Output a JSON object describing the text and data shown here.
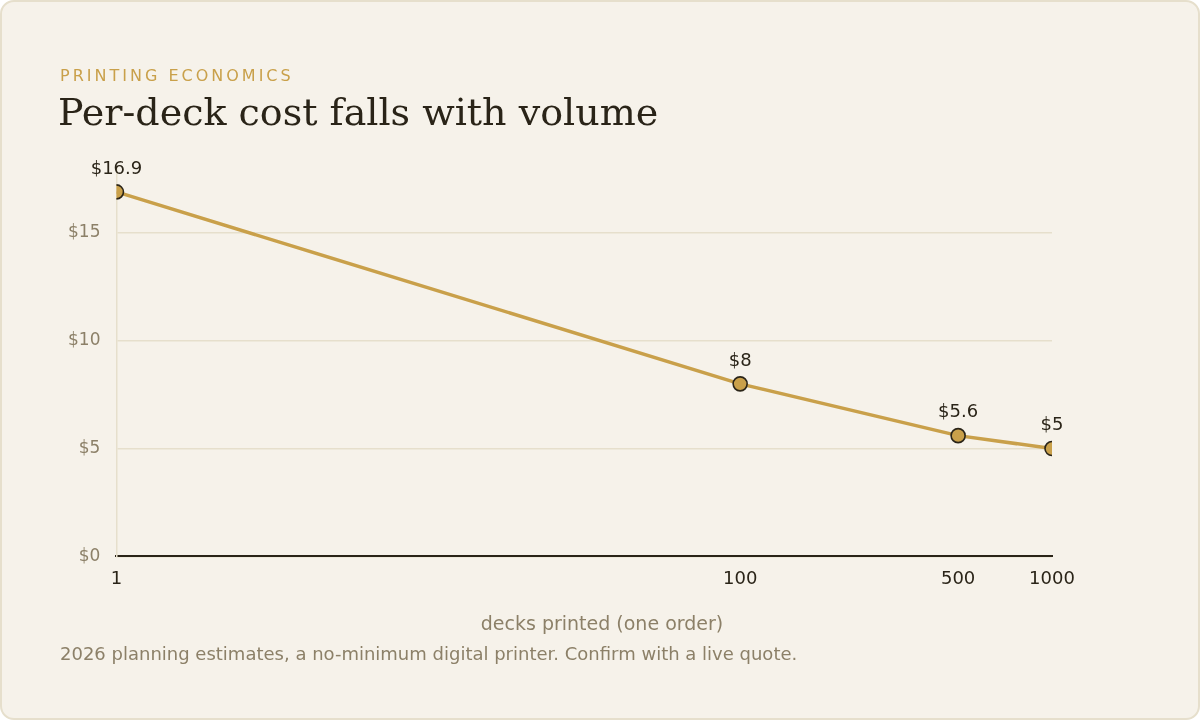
{
  "chart_data": {
    "type": "line",
    "subtitle": "PRINTING ECONOMICS",
    "title": "Per-deck cost falls with volume",
    "xlabel": "decks printed (one order)",
    "annotations": [
      "2026 planning estimates, a no-minimum digital printer. Confirm with a live quote."
    ],
    "x": [
      1,
      100,
      500,
      1000
    ],
    "series": [
      {
        "color": "#c9a04a",
        "values": [
          16.9,
          8,
          5.6,
          5
        ],
        "value_labels": [
          "$16.9",
          "$8",
          "$5.6",
          "$5"
        ]
      }
    ],
    "log": "x",
    "xlim": [
      1,
      1000
    ],
    "xticks": [
      1,
      100,
      500,
      1000
    ],
    "ylim": [
      0,
      18
    ],
    "yticks": [
      {
        "value": 0,
        "label": "$0"
      },
      {
        "value": 5,
        "label": "$5"
      },
      {
        "value": 10,
        "label": "$10"
      },
      {
        "value": 15,
        "label": "$15"
      }
    ],
    "grid": "y",
    "legend": false,
    "marker": "circle",
    "line_style": "solid"
  }
}
